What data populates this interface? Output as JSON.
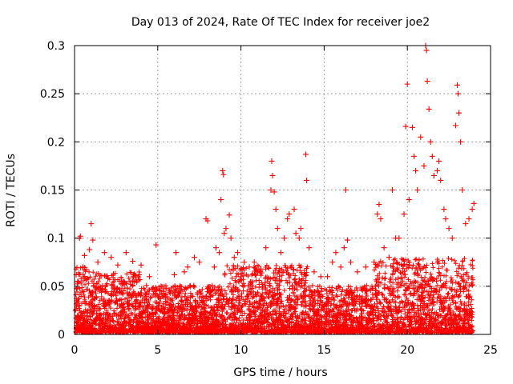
{
  "chart_data": {
    "type": "scatter",
    "title": "Day 013 of 2024, Rate Of TEC Index for receiver joe2",
    "xlabel": "GPS time / hours",
    "ylabel": "ROTI / TECUs",
    "xlim": [
      0,
      25
    ],
    "ylim": [
      0,
      0.3
    ],
    "x_ticks": [
      0,
      5,
      10,
      15,
      20,
      25
    ],
    "y_ticks": [
      0,
      0.05,
      0.1,
      0.15,
      0.2,
      0.25,
      0.3
    ],
    "x_tick_labels": [
      "0",
      "5",
      "10",
      "15",
      "20",
      "25"
    ],
    "y_tick_labels": [
      "0",
      "0.05",
      "0.1",
      "0.15",
      "0.2",
      "0.25",
      "0.3"
    ],
    "grid": true,
    "marker": "plus",
    "color": "#ff0000",
    "series": [
      {
        "points": [
          [
            0.1,
            0.062
          ],
          [
            0.2,
            0.055
          ],
          [
            0.3,
            0.1
          ],
          [
            0.35,
            0.102
          ],
          [
            0.5,
            0.07
          ],
          [
            0.6,
            0.082
          ],
          [
            0.9,
            0.088
          ],
          [
            1.0,
            0.115
          ],
          [
            1.1,
            0.098
          ],
          [
            1.4,
            0.075
          ],
          [
            1.8,
            0.085
          ],
          [
            2.2,
            0.08
          ],
          [
            2.6,
            0.072
          ],
          [
            3.1,
            0.085
          ],
          [
            3.5,
            0.076
          ],
          [
            4.0,
            0.072
          ],
          [
            4.5,
            0.06
          ],
          [
            4.9,
            0.093
          ],
          [
            5.2,
            0.05
          ],
          [
            5.5,
            0.048
          ],
          [
            6.0,
            0.062
          ],
          [
            6.1,
            0.085
          ],
          [
            6.6,
            0.065
          ],
          [
            6.8,
            0.07
          ],
          [
            7.2,
            0.08
          ],
          [
            7.5,
            0.075
          ],
          [
            7.9,
            0.12
          ],
          [
            8.0,
            0.118
          ],
          [
            8.4,
            0.07
          ],
          [
            8.5,
            0.09
          ],
          [
            8.7,
            0.085
          ],
          [
            8.8,
            0.14
          ],
          [
            8.9,
            0.17
          ],
          [
            8.95,
            0.166
          ],
          [
            9.0,
            0.105
          ],
          [
            9.1,
            0.11
          ],
          [
            9.3,
            0.124
          ],
          [
            9.4,
            0.1
          ],
          [
            9.6,
            0.08
          ],
          [
            9.8,
            0.085
          ],
          [
            10.0,
            0.06
          ],
          [
            10.2,
            0.075
          ],
          [
            10.5,
            0.07
          ],
          [
            10.8,
            0.075
          ],
          [
            11.0,
            0.065
          ],
          [
            11.2,
            0.068
          ],
          [
            11.5,
            0.09
          ],
          [
            11.8,
            0.15
          ],
          [
            11.85,
            0.18
          ],
          [
            11.9,
            0.165
          ],
          [
            12.0,
            0.148
          ],
          [
            12.1,
            0.13
          ],
          [
            12.2,
            0.11
          ],
          [
            12.4,
            0.085
          ],
          [
            12.6,
            0.1
          ],
          [
            12.8,
            0.12
          ],
          [
            12.9,
            0.125
          ],
          [
            13.2,
            0.13
          ],
          [
            13.3,
            0.105
          ],
          [
            13.5,
            0.1
          ],
          [
            13.6,
            0.11
          ],
          [
            13.9,
            0.187
          ],
          [
            13.95,
            0.16
          ],
          [
            14.1,
            0.09
          ],
          [
            14.4,
            0.065
          ],
          [
            14.8,
            0.06
          ],
          [
            15.2,
            0.06
          ],
          [
            15.5,
            0.075
          ],
          [
            15.7,
            0.085
          ],
          [
            16.0,
            0.07
          ],
          [
            16.2,
            0.09
          ],
          [
            16.3,
            0.15
          ],
          [
            16.4,
            0.098
          ],
          [
            16.6,
            0.075
          ],
          [
            17.0,
            0.065
          ],
          [
            17.5,
            0.07
          ],
          [
            18.0,
            0.075
          ],
          [
            18.2,
            0.125
          ],
          [
            18.3,
            0.135
          ],
          [
            18.4,
            0.12
          ],
          [
            18.6,
            0.09
          ],
          [
            18.9,
            0.08
          ],
          [
            19.1,
            0.15
          ],
          [
            19.3,
            0.1
          ],
          [
            19.5,
            0.1
          ],
          [
            19.8,
            0.125
          ],
          [
            19.9,
            0.216
          ],
          [
            20.0,
            0.26
          ],
          [
            20.1,
            0.14
          ],
          [
            20.3,
            0.215
          ],
          [
            20.4,
            0.185
          ],
          [
            20.5,
            0.17
          ],
          [
            20.6,
            0.15
          ],
          [
            20.8,
            0.205
          ],
          [
            21.0,
            0.175
          ],
          [
            21.1,
            0.3
          ],
          [
            21.15,
            0.295
          ],
          [
            21.2,
            0.263
          ],
          [
            21.3,
            0.234
          ],
          [
            21.4,
            0.2
          ],
          [
            21.5,
            0.185
          ],
          [
            21.6,
            0.165
          ],
          [
            21.8,
            0.17
          ],
          [
            21.9,
            0.18
          ],
          [
            22.0,
            0.16
          ],
          [
            22.2,
            0.13
          ],
          [
            22.3,
            0.12
          ],
          [
            22.5,
            0.11
          ],
          [
            22.7,
            0.1
          ],
          [
            22.9,
            0.217
          ],
          [
            23.0,
            0.259
          ],
          [
            23.05,
            0.25
          ],
          [
            23.1,
            0.23
          ],
          [
            23.2,
            0.2
          ],
          [
            23.3,
            0.15
          ],
          [
            23.5,
            0.115
          ],
          [
            23.7,
            0.12
          ],
          [
            23.9,
            0.13
          ],
          [
            24.0,
            0.136
          ]
        ]
      }
    ]
  }
}
